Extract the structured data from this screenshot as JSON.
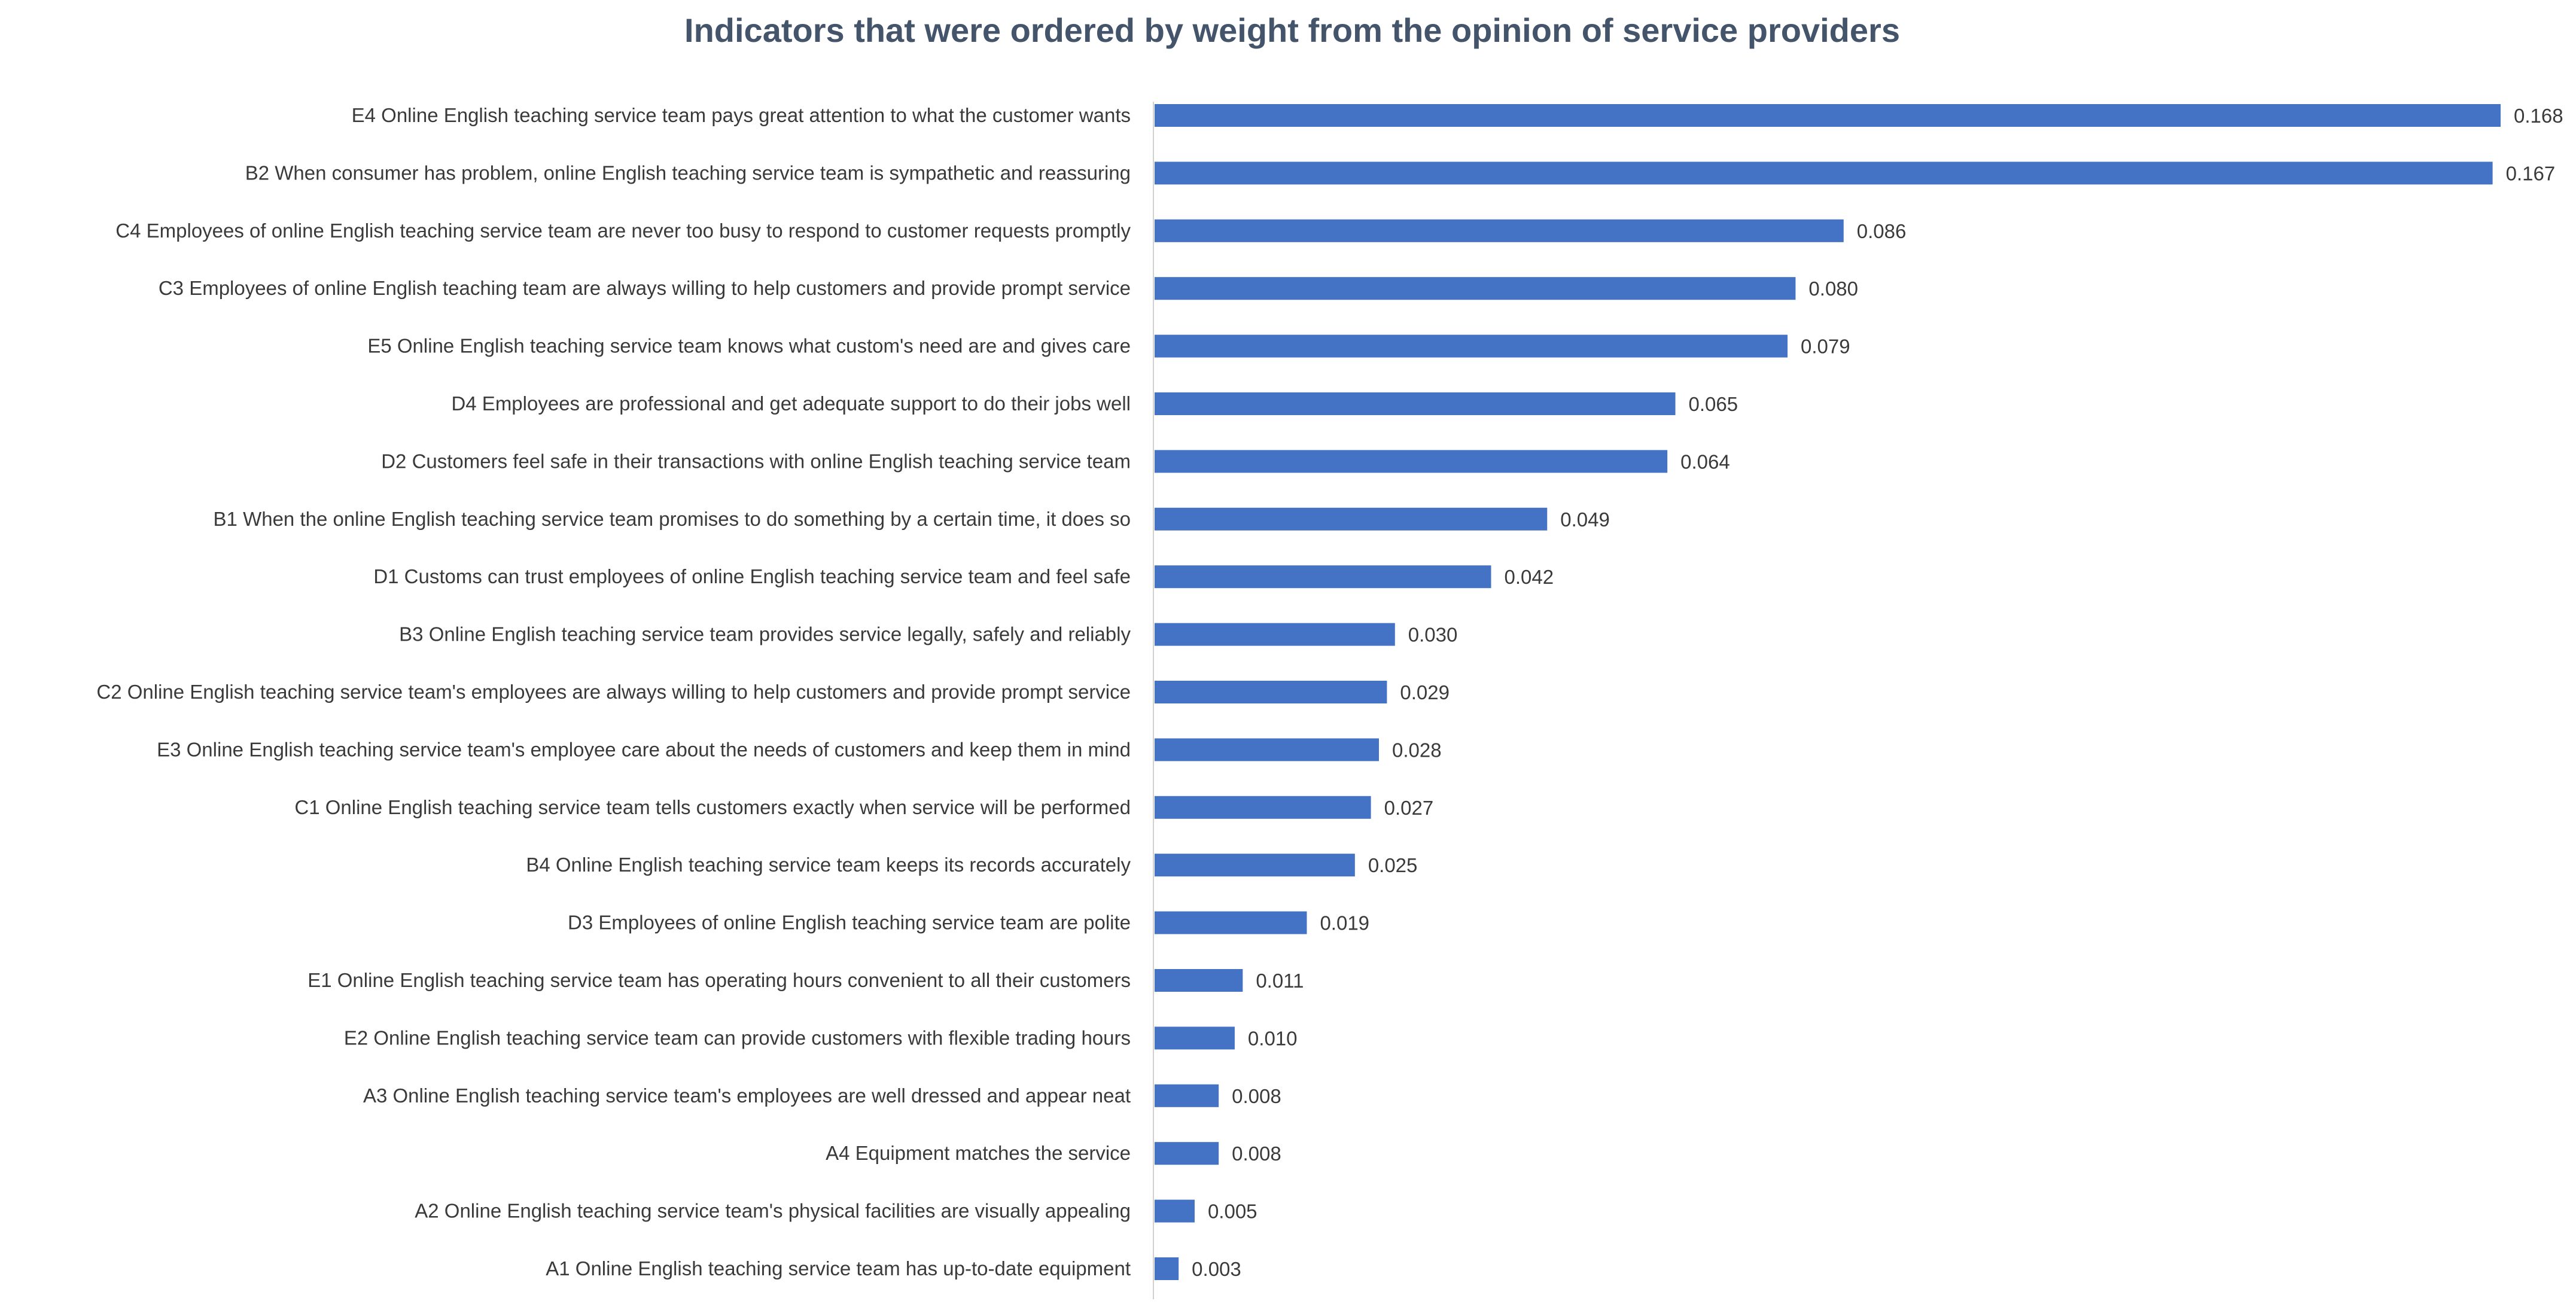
{
  "chart_data": {
    "type": "bar",
    "orientation": "horizontal",
    "title": "Indicators that were ordered by weight from the opinion of service providers",
    "xlabel": "",
    "ylabel": "",
    "xlim": [
      0,
      0.168
    ],
    "grid": false,
    "legend": "none",
    "bar_color": "#4472C4",
    "categories": [
      "E4 Online English teaching service team pays great attention to what the customer wants",
      "B2 When consumer has problem, online English teaching service team is sympathetic and reassuring",
      "C4 Employees of online English teaching service team are never too busy to respond to customer requests promptly",
      "C3 Employees of online English teaching team are always willing to help customers and provide prompt service",
      "E5 Online English teaching service team knows what custom's need are and gives care",
      "D4 Employees are professional and get adequate support to do their jobs well",
      "D2 Customers feel safe in their transactions with online English teaching service team",
      "B1 When the online English teaching service team promises to do something by a certain time, it does so",
      "D1 Customs can trust employees of online English teaching service team and feel safe",
      "B3 Online English teaching service team provides service legally, safely and reliably",
      "C2 Online English teaching service team's employees are always willing to help customers and provide prompt service",
      "E3 Online English teaching service team's employee care about the needs of customers and keep them in mind",
      "C1 Online English teaching service team tells customers exactly when service will be performed",
      "B4 Online English teaching service team keeps its records accurately",
      "D3 Employees of online English teaching service team are polite",
      "E1 Online English teaching service team has operating hours convenient to all their customers",
      "E2 Online English teaching service team can provide customers with flexible trading hours",
      "A3 Online English teaching service team's employees are well dressed and appear neat",
      "A4 Equipment matches the service",
      "A2 Online English teaching service team's physical facilities are visually appealing",
      "A1 Online English teaching service team has up-to-date equipment"
    ],
    "values": [
      0.168,
      0.167,
      0.086,
      0.08,
      0.079,
      0.065,
      0.064,
      0.049,
      0.042,
      0.03,
      0.029,
      0.028,
      0.027,
      0.025,
      0.019,
      0.011,
      0.01,
      0.008,
      0.008,
      0.005,
      0.003
    ],
    "value_labels": [
      "0.168",
      "0.167",
      "0.086",
      "0.080",
      "0.079",
      "0.065",
      "0.064",
      "0.049",
      "0.042",
      "0.030",
      "0.029",
      "0.028",
      "0.027",
      "0.025",
      "0.019",
      "0.011",
      "0.010",
      "0.008",
      "0.008",
      "0.005",
      "0.003"
    ]
  }
}
